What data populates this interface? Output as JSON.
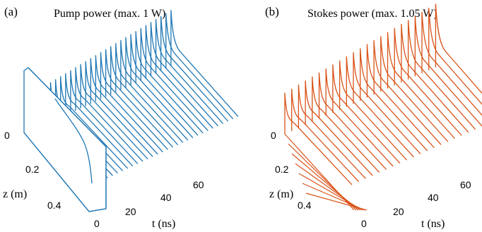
{
  "colors": {
    "pump": "#1f77b4",
    "stokes": "#d95319",
    "text": "#000000"
  },
  "chart_data": [
    {
      "type": "line",
      "panel_label": "(a)",
      "title": "Pump power (max. 1 W)",
      "xlabel": "t (ns)",
      "zlabel": "z (m)",
      "xticks": [
        "0",
        "20",
        "40",
        "60"
      ],
      "zticks": [
        "0",
        "0.2",
        "0.4"
      ],
      "xlim": [
        0,
        70
      ],
      "zlim": [
        0,
        0.5
      ],
      "series_count": 30,
      "color": "#1f77b4"
    },
    {
      "type": "line",
      "panel_label": "(b)",
      "title": "Stokes power (max. 1.05 W)",
      "xlabel": "t (ns)",
      "zlabel": "z (m)",
      "xticks": [
        "0",
        "20",
        "40",
        "60"
      ],
      "zticks": [
        "0",
        "0.2",
        "0.4"
      ],
      "xlim": [
        0,
        70
      ],
      "zlim": [
        0,
        0.5
      ],
      "series_count": 23,
      "color": "#d95319"
    }
  ]
}
